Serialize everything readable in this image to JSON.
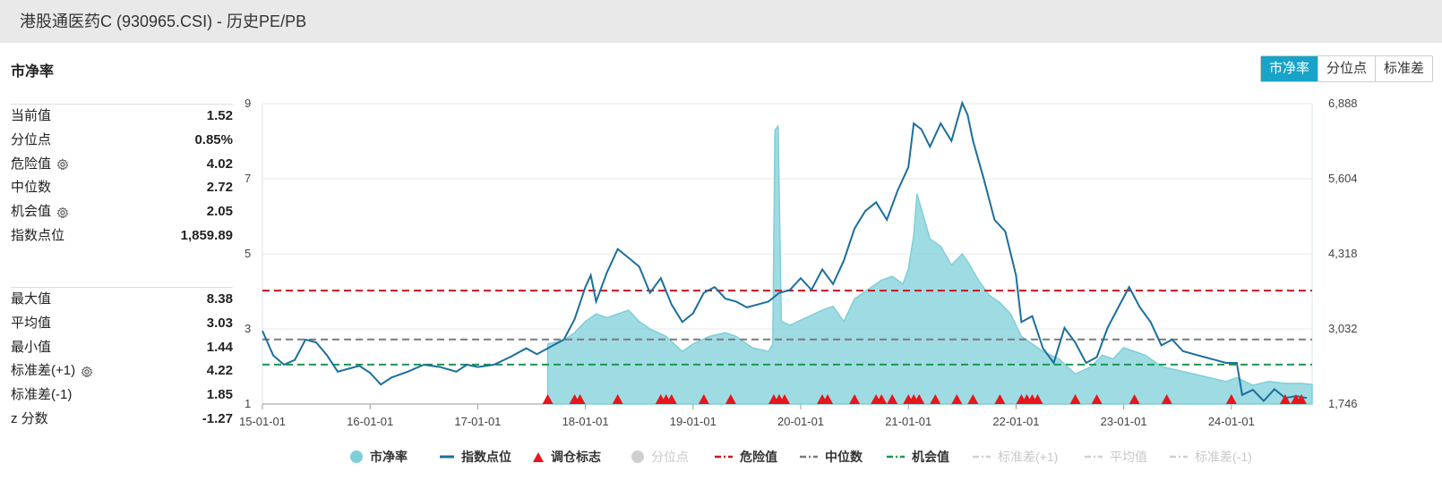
{
  "page": {
    "title": "港股通医药C (930965.CSI) - 历史PE/PB",
    "section_title": "市净率"
  },
  "tabs": [
    {
      "label": "市净率",
      "active": true
    },
    {
      "label": "分位点",
      "active": false
    },
    {
      "label": "标准差",
      "active": false
    }
  ],
  "stats_primary": [
    {
      "label": "当前值",
      "value": "1.52",
      "gear": false
    },
    {
      "label": "分位点",
      "value": "0.85%",
      "gear": false
    },
    {
      "label": "危险值",
      "value": "4.02",
      "gear": true
    },
    {
      "label": "中位数",
      "value": "2.72",
      "gear": false
    },
    {
      "label": "机会值",
      "value": "2.05",
      "gear": true
    },
    {
      "label": "指数点位",
      "value": "1,859.89",
      "gear": false
    }
  ],
  "stats_secondary": [
    {
      "label": "最大值",
      "value": "8.38",
      "gear": false
    },
    {
      "label": "平均值",
      "value": "3.03",
      "gear": false
    },
    {
      "label": "最小值",
      "value": "1.44",
      "gear": false
    },
    {
      "label": "标准差(+1)",
      "value": "4.22",
      "gear": true
    },
    {
      "label": "标准差(-1)",
      "value": "1.85",
      "gear": false
    },
    {
      "label": "z 分数",
      "value": "-1.27",
      "gear": false
    }
  ],
  "legend": [
    {
      "label": "市净率",
      "marker": "circle",
      "color": "#7fcfd8",
      "active": true
    },
    {
      "label": "指数点位",
      "marker": "line",
      "color": "#1b6f9c",
      "active": true
    },
    {
      "label": "调仓标志",
      "marker": "triangle",
      "color": "#e8151b",
      "active": true
    },
    {
      "label": "分位点",
      "marker": "circle",
      "color": "#cfcfcf",
      "active": false
    },
    {
      "label": "危险值",
      "marker": "dash",
      "color": "#c8161d",
      "active": true
    },
    {
      "label": "中位数",
      "marker": "dash",
      "color": "#7a7a7a",
      "active": true
    },
    {
      "label": "机会值",
      "marker": "dash",
      "color": "#1a9850",
      "active": true
    },
    {
      "label": "标准差(+1)",
      "marker": "dash",
      "color": "#cfcfcf",
      "active": false
    },
    {
      "label": "平均值",
      "marker": "dash",
      "color": "#cfcfcf",
      "active": false
    },
    {
      "label": "标准差(-1)",
      "marker": "dash",
      "color": "#cfcfcf",
      "active": false
    }
  ],
  "chart_data": {
    "type": "line",
    "x_ticks": [
      "15-01-01",
      "16-01-01",
      "17-01-01",
      "18-01-01",
      "19-01-01",
      "20-01-01",
      "21-01-01",
      "22-01-01",
      "23-01-01",
      "24-01-01"
    ],
    "x_range": [
      2015.0,
      2024.75
    ],
    "y_left": {
      "ticks": [
        "1",
        "3",
        "5",
        "7",
        "9"
      ],
      "range": [
        1,
        9
      ]
    },
    "y_right": {
      "ticks": [
        "1,746",
        "3,032",
        "4,318",
        "5,604",
        "6,888"
      ],
      "range": [
        1746,
        6888
      ]
    },
    "colors": {
      "pb": "#7fcfd8",
      "index": "#1b6f9c",
      "danger": "#c8161d",
      "median": "#7a7a7a",
      "opportunity": "#1a9850",
      "marker": "#e8151b"
    },
    "reference_lines": [
      {
        "name": "危险值",
        "value": 4.02,
        "color": "#c8161d"
      },
      {
        "name": "中位数",
        "value": 2.72,
        "color": "#7a7a7a"
      },
      {
        "name": "机会值",
        "value": 2.05,
        "color": "#1a9850"
      }
    ],
    "series": [
      {
        "name": "市净率",
        "axis": "left",
        "style": "area",
        "points": [
          [
            2017.65,
            2.6
          ],
          [
            2017.8,
            2.7
          ],
          [
            2017.9,
            2.9
          ],
          [
            2018.0,
            3.2
          ],
          [
            2018.1,
            3.4
          ],
          [
            2018.2,
            3.3
          ],
          [
            2018.3,
            3.4
          ],
          [
            2018.4,
            3.5
          ],
          [
            2018.5,
            3.2
          ],
          [
            2018.6,
            3.0
          ],
          [
            2018.75,
            2.8
          ],
          [
            2018.9,
            2.4
          ],
          [
            2019.0,
            2.6
          ],
          [
            2019.15,
            2.8
          ],
          [
            2019.3,
            2.9
          ],
          [
            2019.4,
            2.8
          ],
          [
            2019.55,
            2.5
          ],
          [
            2019.7,
            2.4
          ],
          [
            2019.74,
            2.6
          ],
          [
            2019.76,
            8.3
          ],
          [
            2019.79,
            8.4
          ],
          [
            2019.82,
            3.2
          ],
          [
            2019.9,
            3.1
          ],
          [
            2020.05,
            3.3
          ],
          [
            2020.2,
            3.5
          ],
          [
            2020.3,
            3.6
          ],
          [
            2020.4,
            3.2
          ],
          [
            2020.5,
            3.8
          ],
          [
            2020.6,
            4.0
          ],
          [
            2020.75,
            4.3
          ],
          [
            2020.85,
            4.4
          ],
          [
            2020.95,
            4.2
          ],
          [
            2021.0,
            4.6
          ],
          [
            2021.05,
            5.5
          ],
          [
            2021.08,
            6.6
          ],
          [
            2021.12,
            6.2
          ],
          [
            2021.2,
            5.4
          ],
          [
            2021.3,
            5.2
          ],
          [
            2021.4,
            4.7
          ],
          [
            2021.5,
            5.0
          ],
          [
            2021.55,
            4.8
          ],
          [
            2021.65,
            4.3
          ],
          [
            2021.75,
            3.9
          ],
          [
            2021.85,
            3.7
          ],
          [
            2021.95,
            3.4
          ],
          [
            2022.05,
            2.8
          ],
          [
            2022.15,
            2.6
          ],
          [
            2022.25,
            2.4
          ],
          [
            2022.4,
            2.2
          ],
          [
            2022.55,
            1.8
          ],
          [
            2022.7,
            2.0
          ],
          [
            2022.8,
            2.3
          ],
          [
            2022.9,
            2.2
          ],
          [
            2023.0,
            2.5
          ],
          [
            2023.1,
            2.4
          ],
          [
            2023.2,
            2.3
          ],
          [
            2023.35,
            2.0
          ],
          [
            2023.5,
            1.9
          ],
          [
            2023.65,
            1.8
          ],
          [
            2023.8,
            1.7
          ],
          [
            2023.95,
            1.6
          ],
          [
            2024.05,
            1.7
          ],
          [
            2024.2,
            1.5
          ],
          [
            2024.35,
            1.6
          ],
          [
            2024.5,
            1.55
          ],
          [
            2024.65,
            1.55
          ],
          [
            2024.75,
            1.52
          ]
        ]
      },
      {
        "name": "指数点位",
        "axis": "right",
        "style": "line",
        "points": [
          [
            2015.0,
            3000
          ],
          [
            2015.1,
            2580
          ],
          [
            2015.2,
            2420
          ],
          [
            2015.3,
            2500
          ],
          [
            2015.4,
            2850
          ],
          [
            2015.5,
            2800
          ],
          [
            2015.6,
            2580
          ],
          [
            2015.7,
            2300
          ],
          [
            2015.8,
            2350
          ],
          [
            2015.9,
            2400
          ],
          [
            2016.0,
            2280
          ],
          [
            2016.1,
            2080
          ],
          [
            2016.2,
            2200
          ],
          [
            2016.35,
            2300
          ],
          [
            2016.5,
            2420
          ],
          [
            2016.65,
            2380
          ],
          [
            2016.8,
            2300
          ],
          [
            2016.9,
            2420
          ],
          [
            2017.0,
            2380
          ],
          [
            2017.15,
            2420
          ],
          [
            2017.3,
            2550
          ],
          [
            2017.45,
            2700
          ],
          [
            2017.55,
            2600
          ],
          [
            2017.7,
            2750
          ],
          [
            2017.8,
            2850
          ],
          [
            2017.9,
            3200
          ],
          [
            2018.0,
            3750
          ],
          [
            2018.05,
            3950
          ],
          [
            2018.1,
            3500
          ],
          [
            2018.2,
            4000
          ],
          [
            2018.3,
            4400
          ],
          [
            2018.4,
            4250
          ],
          [
            2018.5,
            4100
          ],
          [
            2018.6,
            3650
          ],
          [
            2018.7,
            3900
          ],
          [
            2018.8,
            3450
          ],
          [
            2018.9,
            3150
          ],
          [
            2019.0,
            3300
          ],
          [
            2019.1,
            3650
          ],
          [
            2019.2,
            3750
          ],
          [
            2019.3,
            3550
          ],
          [
            2019.4,
            3500
          ],
          [
            2019.5,
            3400
          ],
          [
            2019.6,
            3450
          ],
          [
            2019.7,
            3500
          ],
          [
            2019.8,
            3650
          ],
          [
            2019.9,
            3700
          ],
          [
            2020.0,
            3900
          ],
          [
            2020.1,
            3700
          ],
          [
            2020.2,
            4050
          ],
          [
            2020.3,
            3800
          ],
          [
            2020.4,
            4200
          ],
          [
            2020.5,
            4750
          ],
          [
            2020.6,
            5050
          ],
          [
            2020.7,
            5200
          ],
          [
            2020.8,
            4900
          ],
          [
            2020.9,
            5400
          ],
          [
            2021.0,
            5800
          ],
          [
            2021.05,
            6550
          ],
          [
            2021.12,
            6450
          ],
          [
            2021.2,
            6150
          ],
          [
            2021.3,
            6550
          ],
          [
            2021.4,
            6250
          ],
          [
            2021.5,
            6900
          ],
          [
            2021.55,
            6700
          ],
          [
            2021.6,
            6250
          ],
          [
            2021.7,
            5600
          ],
          [
            2021.8,
            4900
          ],
          [
            2021.9,
            4700
          ],
          [
            2022.0,
            3950
          ],
          [
            2022.05,
            3150
          ],
          [
            2022.15,
            3250
          ],
          [
            2022.25,
            2700
          ],
          [
            2022.35,
            2450
          ],
          [
            2022.45,
            3050
          ],
          [
            2022.55,
            2800
          ],
          [
            2022.65,
            2450
          ],
          [
            2022.75,
            2550
          ],
          [
            2022.85,
            3050
          ],
          [
            2022.95,
            3400
          ],
          [
            2023.05,
            3750
          ],
          [
            2023.15,
            3400
          ],
          [
            2023.25,
            3150
          ],
          [
            2023.35,
            2750
          ],
          [
            2023.45,
            2850
          ],
          [
            2023.55,
            2650
          ],
          [
            2023.65,
            2600
          ],
          [
            2023.75,
            2550
          ],
          [
            2023.85,
            2500
          ],
          [
            2023.95,
            2450
          ],
          [
            2024.05,
            2450
          ],
          [
            2024.1,
            1900
          ],
          [
            2024.2,
            1990
          ],
          [
            2024.3,
            1800
          ],
          [
            2024.4,
            2000
          ],
          [
            2024.5,
            1850
          ],
          [
            2024.6,
            1880
          ],
          [
            2024.7,
            1850
          ]
        ]
      }
    ],
    "rebalance_markers": [
      2017.65,
      2017.9,
      2017.95,
      2018.3,
      2018.7,
      2018.75,
      2018.8,
      2019.1,
      2019.35,
      2019.75,
      2019.8,
      2019.85,
      2020.2,
      2020.25,
      2020.5,
      2020.7,
      2020.75,
      2020.85,
      2021.0,
      2021.05,
      2021.1,
      2021.25,
      2021.45,
      2021.6,
      2021.85,
      2022.05,
      2022.1,
      2022.15,
      2022.2,
      2022.55,
      2022.75,
      2023.1,
      2023.4,
      2024.0,
      2024.5,
      2024.6,
      2024.65
    ]
  }
}
